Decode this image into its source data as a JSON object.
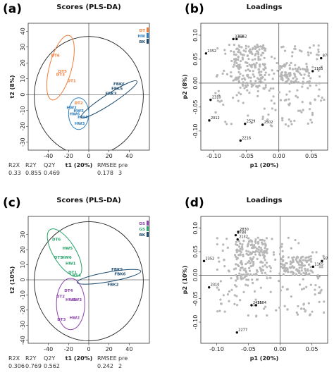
{
  "panels": [
    {
      "letter": "(a)",
      "kind": "scores",
      "title": "Scores (PLS-DA)",
      "xlabel": "t1 (20%)",
      "ylabel": "t2 (8%)",
      "xlim": [
        -60,
        60
      ],
      "ylim": [
        -35,
        45
      ],
      "xticks": [
        -40,
        -20,
        0,
        20,
        40
      ],
      "yticks": [
        -30,
        -20,
        -10,
        0,
        10,
        20,
        30,
        40
      ],
      "legend": [
        {
          "label": "DT",
          "color": "#f07c3a"
        },
        {
          "label": "HW",
          "color": "#2f7fc1"
        },
        {
          "label": "BK",
          "color": "#1b4a6e"
        }
      ],
      "groups": [
        {
          "name": "DT",
          "color": "#f07c3a",
          "ellipse": {
            "cx": -28,
            "cy": 17,
            "rx": 11,
            "ry": 21,
            "angle": 15
          },
          "labels": [
            {
              "t": "DT6",
              "x": -33,
              "y": 24
            },
            {
              "t": "DT3",
              "x": -28,
              "y": 12
            },
            {
              "t": "DT5",
              "x": -26,
              "y": 14
            },
            {
              "t": "DT1",
              "x": -17,
              "y": 8
            },
            {
              "t": "DT2",
              "x": -10,
              "y": -6
            }
          ]
        },
        {
          "name": "HW",
          "color": "#2f7fc1",
          "ellipse": {
            "cx": -10,
            "cy": -12,
            "rx": 10,
            "ry": 10,
            "angle": 0
          },
          "labels": [
            {
              "t": "HW2",
              "x": -17,
              "y": -9
            },
            {
              "t": "HW5",
              "x": -10,
              "y": -11
            },
            {
              "t": "HW4",
              "x": -6,
              "y": -15
            },
            {
              "t": "HW3",
              "x": -9,
              "y": -19
            },
            {
              "t": "HW6",
              "x": -14,
              "y": -13
            }
          ]
        },
        {
          "name": "BK",
          "color": "#1b4a6e",
          "ellipse": {
            "cx": 20,
            "cy": -3,
            "rx": 33,
            "ry": 3.2,
            "angle": -33
          },
          "labels": [
            {
              "t": "FBK5",
              "x": 28,
              "y": 3
            },
            {
              "t": "FBK6",
              "x": 30,
              "y": 6
            },
            {
              "t": "FBK3",
              "x": 22,
              "y": 0
            }
          ]
        }
      ],
      "stats": {
        "headers": [
          "R2X",
          "R2Y",
          "Q2Y",
          "RMSEE",
          "pre"
        ],
        "values": [
          "0.33",
          "0.855",
          "0.469",
          "0.178",
          "3"
        ]
      }
    },
    {
      "letter": "(b)",
      "kind": "loadings",
      "title": "Loadings",
      "xlabel": "p1 (20%)",
      "ylabel": "p2 (8%)",
      "xlim": [
        -0.12,
        0.075
      ],
      "ylim": [
        -0.14,
        0.125
      ],
      "xticks": [
        -0.1,
        -0.05,
        0.0,
        0.05
      ],
      "xtick_labels": [
        "-0.10",
        "-0.05",
        "0.00",
        "0.05"
      ],
      "yticks": [
        -0.1,
        -0.05,
        0.0,
        0.05,
        0.1
      ],
      "ytick_labels": [
        "-0.10",
        "-0.05",
        "0.00",
        "0.05",
        "0.10"
      ],
      "highlights": [
        {
          "t": "2352",
          "x": -0.112,
          "y": 0.062
        },
        {
          "t": "2310",
          "x": -0.105,
          "y": -0.035
        },
        {
          "t": "2012",
          "x": -0.107,
          "y": -0.078
        },
        {
          "t": "2529",
          "x": -0.052,
          "y": -0.085
        },
        {
          "t": "2502",
          "x": -0.025,
          "y": -0.087
        },
        {
          "t": "2216",
          "x": -0.059,
          "y": -0.12
        },
        {
          "t": "1165",
          "x": 0.052,
          "y": 0.025
        },
        {
          "t": "870",
          "x": 0.065,
          "y": 0.052
        },
        {
          "t": "3368",
          "x": -0.07,
          "y": 0.092
        },
        {
          "t": "3262",
          "x": -0.065,
          "y": 0.092
        }
      ]
    },
    {
      "letter": "(c)",
      "kind": "scores",
      "title": "Scores (PLS-DA)",
      "xlabel": "t1 (20%)",
      "ylabel": "t2 (10%)",
      "xlim": [
        -60,
        60
      ],
      "ylim": [
        -42,
        42
      ],
      "xticks": [
        -40,
        -20,
        0,
        20,
        40
      ],
      "yticks": [
        -40,
        -30,
        -20,
        -10,
        0,
        10,
        20,
        30
      ],
      "legend": [
        {
          "label": "DS",
          "color": "#8e44ad"
        },
        {
          "label": "GS",
          "color": "#27a36a"
        },
        {
          "label": "BK",
          "color": "#1b4a6e"
        }
      ],
      "groups": [
        {
          "name": "GS",
          "color": "#27a36a",
          "ellipse": {
            "cx": -24,
            "cy": 18,
            "rx": 11,
            "ry": 18,
            "angle": -32
          },
          "labels": [
            {
              "t": "DT6",
              "x": -32,
              "y": 26
            },
            {
              "t": "HW5",
              "x": -21,
              "y": 20
            },
            {
              "t": "DT5",
              "x": -30,
              "y": 14
            },
            {
              "t": "HW6",
              "x": -22,
              "y": 14
            },
            {
              "t": "HW1",
              "x": -18,
              "y": 10
            },
            {
              "t": "DT1",
              "x": -16,
              "y": 4
            },
            {
              "t": "RS4",
              "x": -12,
              "y": 2
            }
          ]
        },
        {
          "name": "DS",
          "color": "#8e44ad",
          "ellipse": {
            "cx": -18,
            "cy": -16,
            "rx": 14,
            "ry": 17,
            "angle": 0
          },
          "labels": [
            {
              "t": "DT4",
              "x": -20,
              "y": -8
            },
            {
              "t": "DT2",
              "x": -28,
              "y": -12
            },
            {
              "t": "HW2",
              "x": -18,
              "y": -14
            },
            {
              "t": "HW3",
              "x": -12,
              "y": -14
            },
            {
              "t": "DT3",
              "x": -27,
              "y": -27
            },
            {
              "t": "HW2",
              "x": -14,
              "y": -26
            }
          ]
        },
        {
          "name": "BK",
          "color": "#1b4a6e",
          "ellipse": {
            "cx": 20,
            "cy": 2,
            "rx": 32,
            "ry": 3.2,
            "angle": -10
          },
          "labels": [
            {
              "t": "FBK5",
              "x": 28,
              "y": 6
            },
            {
              "t": "FBK6",
              "x": 31,
              "y": 3
            },
            {
              "t": "FBK2",
              "x": 24,
              "y": -4
            }
          ]
        }
      ],
      "stats": {
        "headers": [
          "R2X",
          "R2Y",
          "Q2Y",
          "RMSEE",
          "pre"
        ],
        "values": [
          "0.306",
          "0.769",
          "0.562",
          "0.242",
          "2"
        ]
      }
    },
    {
      "letter": "(d)",
      "kind": "loadings",
      "title": "Loadings",
      "xlabel": "p1 (20%)",
      "ylabel": "p2 (10%)",
      "xlim": [
        -0.125,
        0.075
      ],
      "ylim": [
        -0.145,
        0.125
      ],
      "xticks": [
        -0.1,
        -0.05,
        0.0,
        0.05
      ],
      "xtick_labels": [
        "-0.10",
        "-0.05",
        "0.00",
        "0.05"
      ],
      "yticks": [
        -0.1,
        -0.05,
        0.0,
        0.05,
        0.1
      ],
      "ytick_labels": [
        "-0.10",
        "-0.05",
        "0.00",
        "0.05",
        "0.10"
      ],
      "highlights": [
        {
          "t": "2352",
          "x": -0.12,
          "y": 0.03
        },
        {
          "t": "2310",
          "x": -0.112,
          "y": -0.026
        },
        {
          "t": "2784",
          "x": -0.07,
          "y": 0.085
        },
        {
          "t": "2830",
          "x": -0.066,
          "y": 0.092
        },
        {
          "t": "2132",
          "x": -0.067,
          "y": 0.076
        },
        {
          "t": "2456",
          "x": -0.045,
          "y": -0.064
        },
        {
          "t": "2584",
          "x": -0.038,
          "y": -0.064
        },
        {
          "t": "2277",
          "x": -0.068,
          "y": -0.122
        },
        {
          "t": "1165",
          "x": 0.052,
          "y": 0.018
        },
        {
          "t": "870",
          "x": 0.066,
          "y": 0.03
        }
      ]
    }
  ]
}
